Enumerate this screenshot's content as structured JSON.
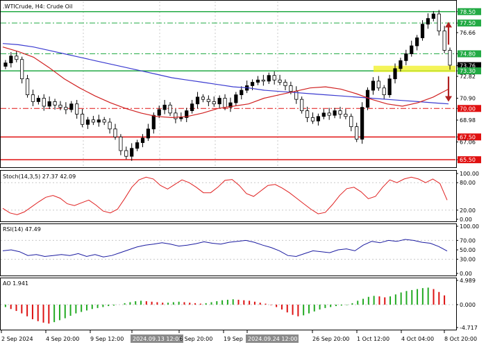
{
  "chart_data": [
    {
      "type": "candlestick",
      "title": ".WTICrude, H4: Crude Oil",
      "symbol": ".WTICrude",
      "timeframe": "H4",
      "description": "Crude Oil",
      "ylim": [
        64.9,
        79.4
      ],
      "price_ticks": [
        "78.50",
        "77.50",
        "76.66",
        "74.80",
        "73.76",
        "73.30",
        "72.82",
        "70.90",
        "70.00",
        "68.98",
        "67.50",
        "67.06",
        "65.50"
      ],
      "support_levels": [
        {
          "price": 73.3,
          "label": "73.30",
          "color": "#22aa44",
          "style": "solid"
        },
        {
          "price": 67.5,
          "label": "67.50",
          "color": "#e01010",
          "style": "solid"
        },
        {
          "price": 65.5,
          "label": "65.50",
          "color": "#e01010",
          "style": "solid"
        }
      ],
      "resistance_levels": [
        {
          "price": 78.5,
          "label": "78.50",
          "color": "#22aa44",
          "style": "solid"
        },
        {
          "price": 77.5,
          "label": "77.50",
          "color": "#22aa44",
          "style": "dashdot"
        },
        {
          "price": 74.8,
          "label": "74.80",
          "color": "#22aa44",
          "style": "dashdot"
        },
        {
          "price": 70.0,
          "label": "70.00",
          "color": "#e01010",
          "style": "dashdot"
        }
      ],
      "current_price": {
        "price": 73.76,
        "label": "73.76"
      },
      "highlight_zone": {
        "price_low": 73.2,
        "price_high": 73.75,
        "color": "#f0f020"
      },
      "arrows": [
        {
          "direction": "up",
          "from": 75.6,
          "to": 77.6,
          "color": "#b02020"
        },
        {
          "direction": "down",
          "from": 72.8,
          "to": 70.6,
          "color": "#b02020"
        }
      ],
      "close": [
        74.0,
        74.6,
        74.3,
        72.6,
        71.2,
        70.6,
        70.9,
        70.2,
        70.6,
        70.3,
        70.1,
        69.9,
        70.4,
        69.5,
        68.6,
        69.0,
        68.8,
        69.0,
        68.8,
        68.2,
        67.5,
        66.3,
        65.8,
        66.5,
        67.0,
        67.4,
        68.2,
        69.4,
        69.9,
        70.3,
        69.6,
        69.1,
        69.2,
        69.8,
        70.4,
        71.0,
        70.8,
        70.6,
        70.4,
        70.9,
        70.1,
        70.5,
        71.2,
        71.6,
        72.0,
        72.3,
        72.5,
        72.4,
        72.9,
        72.5,
        72.3,
        72.0,
        71.5,
        70.8,
        69.8,
        69.2,
        68.9,
        69.3,
        69.6,
        69.4,
        69.8,
        69.5,
        69.3,
        68.4,
        67.3,
        70.1,
        71.6,
        72.4,
        71.8,
        71.2,
        72.6,
        73.5,
        74.2,
        74.8,
        75.5,
        76.2,
        77.4,
        77.9,
        78.3,
        76.8,
        75.1,
        73.8
      ],
      "blue_ma": [
        75.7,
        75.6,
        75.4,
        75.1,
        74.8,
        74.5,
        74.2,
        73.9,
        73.6,
        73.3,
        73.0,
        72.7,
        72.5,
        72.3,
        72.1,
        71.9,
        71.8,
        71.6,
        71.5,
        71.4,
        71.3,
        71.2,
        71.1,
        71.0,
        70.9,
        70.8,
        70.7,
        70.6,
        70.5,
        70.4
      ],
      "red_ma": [
        75.4,
        75.0,
        74.5,
        73.6,
        72.6,
        71.8,
        71.1,
        70.5,
        70.0,
        69.6,
        69.3,
        69.2,
        69.3,
        69.6,
        70.0,
        70.2,
        70.4,
        70.9,
        71.2,
        71.5,
        71.8,
        71.9,
        71.7,
        71.3,
        70.8,
        70.4,
        70.2,
        70.5,
        71.0,
        71.7
      ]
    },
    {
      "type": "line",
      "title": "Stoch(14,3,5) 27.37 42.09",
      "indicator": "Stochastic",
      "values_shown": [
        "27.37",
        "42.09"
      ],
      "ylim": [
        0,
        100
      ],
      "ticks": [
        "100.00",
        "80.00",
        "20.00",
        "0.00"
      ],
      "levels": [
        80,
        20
      ],
      "series": [
        {
          "values": [
            24,
            14,
            10,
            16,
            27,
            38,
            48,
            52,
            46,
            34,
            30,
            36,
            42,
            31,
            18,
            14,
            22,
            45,
            70,
            86,
            92,
            88,
            74,
            66,
            76,
            86,
            80,
            70,
            58,
            58,
            70,
            85,
            87,
            74,
            56,
            50,
            62,
            74,
            76,
            68,
            58,
            46,
            34,
            22,
            12,
            15,
            32,
            52,
            67,
            70,
            60,
            45,
            50,
            70,
            86,
            80,
            88,
            92,
            88,
            80,
            88,
            78,
            42
          ]
        }
      ]
    },
    {
      "type": "line",
      "title": "RSI(14) 47.49",
      "indicator": "RSI",
      "values_shown": [
        "47.49"
      ],
      "ylim": [
        0,
        100
      ],
      "ticks": [
        "100.00",
        "70.00",
        "50.00",
        "30.00",
        "0.00"
      ],
      "levels": [
        70,
        30
      ],
      "series": [
        {
          "values": [
            48,
            50,
            46,
            38,
            40,
            36,
            38,
            40,
            38,
            42,
            36,
            40,
            35,
            38,
            44,
            50,
            56,
            60,
            62,
            65,
            62,
            58,
            60,
            63,
            67,
            64,
            62,
            66,
            68,
            70,
            66,
            60,
            55,
            48,
            38,
            36,
            42,
            48,
            46,
            44,
            50,
            52,
            48,
            60,
            68,
            65,
            70,
            68,
            72,
            70,
            66,
            64,
            57,
            47.49
          ]
        }
      ]
    },
    {
      "type": "bar",
      "title": "AO 1.941",
      "indicator": "Awesome Oscillator",
      "values_shown": [
        "1.941"
      ],
      "ylim": [
        -4.717,
        4.989
      ],
      "ticks": [
        "4.989",
        "0.000",
        "-4.717"
      ],
      "up_color": "#22aa22",
      "down_color": "#dd1111",
      "values": [
        -0.5,
        -0.9,
        -1.3,
        -1.8,
        -2.4,
        -3.0,
        -3.4,
        -3.7,
        -3.9,
        -3.6,
        -3.2,
        -2.8,
        -2.3,
        -1.8,
        -1.5,
        -1.2,
        -0.9,
        -0.7,
        -0.5,
        -0.3,
        -0.2,
        0.0,
        0.3,
        0.5,
        0.7,
        0.8,
        0.7,
        0.6,
        0.5,
        0.4,
        0.4,
        0.5,
        0.6,
        0.5,
        0.4,
        0.3,
        0.2,
        0.3,
        0.5,
        0.7,
        0.9,
        1.0,
        1.1,
        1.0,
        0.9,
        0.8,
        0.6,
        0.4,
        0.2,
        -0.1,
        -0.5,
        -1.0,
        -1.6,
        -2.1,
        -2.4,
        -2.2,
        -1.8,
        -1.4,
        -1.0,
        -0.7,
        -0.5,
        -0.3,
        -0.2,
        -0.1,
        0.3,
        0.8,
        1.2,
        1.6,
        1.8,
        1.7,
        1.5,
        1.7,
        2.1,
        2.5,
        2.8,
        3.0,
        3.2,
        3.4,
        3.5,
        3.2,
        2.6,
        1.9
      ]
    }
  ],
  "time_axis": {
    "labels": [
      "2 Sep 2024",
      "4 Sep 20:00",
      "9 Sep 12:00",
      "2024.09.13 12:00",
      "6 Sep 20:00",
      "19 Sep",
      "2024.09.24 12:00",
      "26 Sep 20:00",
      "1 Oct 12:00",
      "4 Oct 04:00",
      "8 Oct 20:00"
    ]
  },
  "colors": {
    "bull_candle": "#000000",
    "bear_candle": "#ffffff",
    "support": "#e01010",
    "resistance": "#22aa44",
    "blue_ma": "#3a3ad0",
    "red_ma": "#d02020"
  }
}
